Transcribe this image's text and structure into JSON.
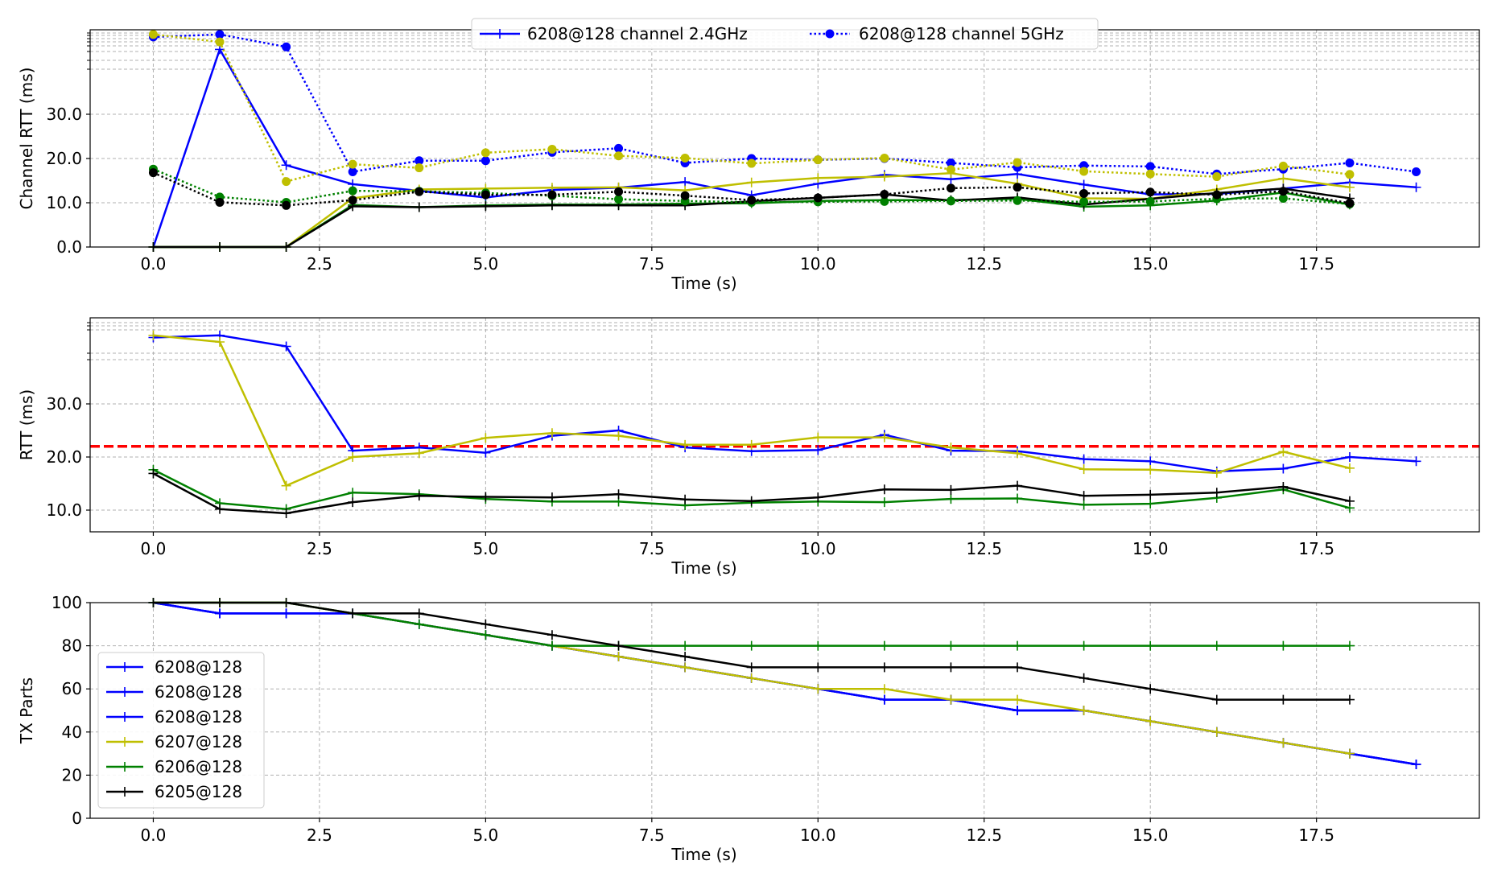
{
  "colors": {
    "blue": "#0000ff",
    "olive": "#bfbf00",
    "green": "#008000",
    "black": "#000000",
    "threshold": "#ff0000",
    "grid": "#b0b0b0"
  },
  "chart_data": [
    {
      "type": "line",
      "xlabel": "Time (s)",
      "ylabel": "Channel RTT (ms)",
      "xlim": [
        -0.95,
        19.95
      ],
      "xticks": [
        "0.0",
        "2.5",
        "5.0",
        "7.5",
        "10.0",
        "12.5",
        "15.0",
        "17.5"
      ],
      "yticks": [
        "0.0",
        "10.0",
        "20.0",
        "30.0"
      ],
      "grid": true,
      "legend_position": "top-center",
      "legend": [
        {
          "label": "6208@128 channel 2.4GHz",
          "style": "solid",
          "marker": "plus",
          "color": "blue"
        },
        {
          "label": "6208@128 channel 5GHz",
          "style": "dotted",
          "marker": "circle",
          "color": "blue"
        }
      ],
      "series": [
        {
          "color": "blue",
          "style": "solid",
          "marker": "plus",
          "x": [
            0,
            1,
            2,
            3,
            4,
            5,
            6,
            7,
            8,
            9,
            10,
            11,
            12,
            13,
            14,
            15,
            16,
            17,
            18,
            19
          ],
          "y": [
            0,
            43,
            18.5,
            14.2,
            12.7,
            11.2,
            12.9,
            13.4,
            14.7,
            11.7,
            14.3,
            16.3,
            15.3,
            16.5,
            14.1,
            11.9,
            12,
            13.2,
            14.6,
            13.5
          ]
        },
        {
          "color": "olive",
          "style": "solid",
          "marker": "plus",
          "x": [
            0,
            1,
            2,
            3,
            4,
            5,
            6,
            7,
            8,
            9,
            10,
            11,
            12,
            13,
            14,
            15,
            16,
            17,
            18
          ],
          "y": [
            0,
            0,
            0,
            11,
            13,
            13.2,
            13.4,
            13.5,
            12.8,
            14.6,
            15.6,
            15.9,
            16.7,
            14.3,
            11,
            10.9,
            13,
            15.5,
            13.5
          ]
        },
        {
          "color": "green",
          "style": "solid",
          "marker": "plus",
          "x": [
            0,
            1,
            2,
            3,
            4,
            5,
            6,
            7,
            8,
            9,
            10,
            11,
            12,
            13,
            14,
            15,
            16,
            17,
            18
          ],
          "y": [
            0,
            0,
            0,
            9.5,
            9,
            9.4,
            9.6,
            9.6,
            9.8,
            9.9,
            10.4,
            10.6,
            10.6,
            10.9,
            9.1,
            9.4,
            10.5,
            12.3,
            9.6
          ]
        },
        {
          "color": "black",
          "style": "solid",
          "marker": "plus",
          "x": [
            0,
            1,
            2,
            3,
            4,
            5,
            6,
            7,
            8,
            9,
            10,
            11,
            12,
            13,
            14,
            15,
            16,
            17,
            18
          ],
          "y": [
            0,
            0,
            0,
            9.2,
            9,
            9.2,
            9.4,
            9.4,
            9.4,
            10.3,
            11.1,
            11.9,
            10.5,
            11.2,
            9.6,
            10.9,
            12.2,
            13.2,
            11
          ]
        },
        {
          "color": "blue",
          "style": "dotted",
          "marker": "circle",
          "x": [
            0,
            1,
            2,
            3,
            4,
            5,
            6,
            7,
            8,
            9,
            10,
            11,
            12,
            13,
            14,
            15,
            16,
            17,
            18,
            19
          ],
          "y": [
            45.5,
            46,
            43.5,
            17,
            19.5,
            19.5,
            21.4,
            22.3,
            19,
            20,
            19.7,
            20,
            19,
            18,
            18.4,
            18.2,
            16.5,
            17.6,
            19,
            17
          ]
        },
        {
          "color": "olive",
          "style": "dotted",
          "marker": "circle",
          "x": [
            0,
            1,
            2,
            3,
            4,
            5,
            6,
            7,
            8,
            9,
            10,
            11,
            12,
            13,
            14,
            15,
            16,
            17,
            18
          ],
          "y": [
            46,
            44.5,
            14.8,
            18.7,
            17.9,
            21.3,
            22.1,
            20.6,
            20.1,
            18.9,
            19.7,
            20.1,
            17.5,
            19.1,
            17.1,
            16.5,
            15.9,
            18.3,
            16.4
          ]
        },
        {
          "color": "green",
          "style": "dotted",
          "marker": "circle",
          "x": [
            0,
            1,
            2,
            3,
            4,
            5,
            6,
            7,
            8,
            9,
            10,
            11,
            12,
            13,
            14,
            15,
            16,
            17,
            18
          ],
          "y": [
            17.6,
            11.3,
            10.1,
            12.7,
            12.6,
            12.2,
            11.6,
            10.8,
            10.4,
            10.1,
            10.2,
            10.3,
            10.4,
            10.5,
            10.2,
            10.3,
            10.9,
            11,
            9.7
          ]
        },
        {
          "color": "black",
          "style": "dotted",
          "marker": "circle",
          "x": [
            0,
            1,
            2,
            3,
            4,
            5,
            6,
            7,
            8,
            9,
            10,
            11,
            12,
            13,
            14,
            15,
            16,
            17,
            18
          ],
          "y": [
            16.8,
            10.1,
            9.4,
            10.6,
            12.5,
            11.8,
            11.8,
            12.5,
            11.6,
            10.6,
            11.1,
            11.9,
            13.3,
            13.5,
            12.1,
            12.4,
            11.8,
            12.6,
            9.9
          ]
        }
      ]
    },
    {
      "type": "line",
      "xlabel": "Time (s)",
      "ylabel": "RTT (ms)",
      "xlim": [
        -0.95,
        19.95
      ],
      "xticks": [
        "0.0",
        "2.5",
        "5.0",
        "7.5",
        "10.0",
        "12.5",
        "15.0",
        "17.5"
      ],
      "yticks": [
        "10.0",
        "20.0",
        "30.0"
      ],
      "grid": true,
      "threshold": {
        "y": 22,
        "color": "threshold",
        "style": "dashed"
      },
      "series": [
        {
          "color": "blue",
          "x": [
            0,
            1,
            2,
            3,
            4,
            5,
            6,
            7,
            8,
            9,
            10,
            11,
            12,
            13,
            14,
            15,
            16,
            17,
            18,
            19
          ],
          "y": [
            45,
            45.5,
            43,
            21.2,
            21.8,
            20.8,
            24,
            25,
            21.8,
            21.1,
            21.3,
            24.2,
            21.2,
            21.1,
            19.6,
            19.2,
            17.3,
            17.8,
            20,
            19.2
          ]
        },
        {
          "color": "olive",
          "x": [
            0,
            1,
            2,
            3,
            4,
            5,
            6,
            7,
            8,
            9,
            10,
            11,
            12,
            13,
            14,
            15,
            16,
            17,
            18
          ],
          "y": [
            45.5,
            44,
            14.6,
            20,
            20.7,
            23.6,
            24.5,
            24,
            22.3,
            22.3,
            23.7,
            23.7,
            21.8,
            20.7,
            17.7,
            17.6,
            17,
            21,
            17.9
          ]
        },
        {
          "color": "green",
          "x": [
            0,
            1,
            2,
            3,
            4,
            5,
            6,
            7,
            8,
            9,
            10,
            11,
            12,
            13,
            14,
            15,
            16,
            17,
            18
          ],
          "y": [
            17.6,
            11.3,
            10.2,
            13.3,
            13,
            12.1,
            11.6,
            11.6,
            10.9,
            11.4,
            11.6,
            11.5,
            12.1,
            12.2,
            11,
            11.2,
            12.3,
            13.9,
            10.4
          ]
        },
        {
          "color": "black",
          "x": [
            0,
            1,
            2,
            3,
            4,
            5,
            6,
            7,
            8,
            9,
            10,
            11,
            12,
            13,
            14,
            15,
            16,
            17,
            18
          ],
          "y": [
            16.9,
            10.2,
            9.4,
            11.5,
            12.7,
            12.5,
            12.4,
            13,
            12,
            11.7,
            12.4,
            13.9,
            13.8,
            14.6,
            12.7,
            12.9,
            13.3,
            14.4,
            11.7
          ]
        }
      ]
    },
    {
      "type": "line",
      "xlabel": "Time (s)",
      "ylabel": "TX Parts",
      "xlim": [
        -0.95,
        19.95
      ],
      "ylim": [
        0,
        100
      ],
      "xticks": [
        "0.0",
        "2.5",
        "5.0",
        "7.5",
        "10.0",
        "12.5",
        "15.0",
        "17.5"
      ],
      "yticks": [
        "0",
        "20",
        "40",
        "60",
        "80",
        "100"
      ],
      "grid": true,
      "legend_position": "lower-left",
      "series": [
        {
          "name": "6208@128",
          "color": "blue",
          "x": [
            0,
            1,
            2,
            3,
            4,
            5,
            6,
            7,
            8,
            9,
            10,
            11,
            12,
            13,
            14,
            15,
            16,
            17,
            18,
            19
          ],
          "y": [
            100,
            95,
            95,
            95,
            90,
            85,
            80,
            75,
            70,
            65,
            60,
            55,
            55,
            50,
            50,
            45,
            40,
            35,
            30,
            25
          ]
        },
        {
          "name": "6208@128",
          "color": "blue",
          "x": [
            0,
            1,
            2,
            3,
            4,
            5,
            6,
            7,
            8,
            9,
            10,
            11,
            12,
            13,
            14,
            15,
            16,
            17,
            18,
            19
          ],
          "y": [
            100,
            95,
            95,
            95,
            90,
            85,
            80,
            75,
            70,
            65,
            60,
            55,
            55,
            50,
            50,
            45,
            40,
            35,
            30,
            25
          ]
        },
        {
          "name": "6208@128",
          "color": "blue",
          "x": [
            0,
            1,
            2,
            3,
            4,
            5,
            6,
            7,
            8,
            9,
            10,
            11,
            12,
            13,
            14,
            15,
            16,
            17,
            18,
            19
          ],
          "y": [
            100,
            95,
            95,
            95,
            90,
            85,
            80,
            75,
            70,
            65,
            60,
            55,
            55,
            50,
            50,
            45,
            40,
            35,
            30,
            25
          ]
        },
        {
          "name": "6207@128",
          "color": "olive",
          "x": [
            0,
            1,
            2,
            3,
            4,
            5,
            6,
            7,
            8,
            9,
            10,
            11,
            12,
            13,
            14,
            15,
            16,
            17,
            18
          ],
          "y": [
            100,
            100,
            100,
            95,
            90,
            85,
            80,
            75,
            70,
            65,
            60,
            60,
            55,
            55,
            50,
            45,
            40,
            35,
            30
          ]
        },
        {
          "name": "6206@128",
          "color": "green",
          "x": [
            0,
            1,
            2,
            3,
            4,
            5,
            6,
            7,
            8,
            9,
            10,
            11,
            12,
            13,
            14,
            15,
            16,
            17,
            18
          ],
          "y": [
            100,
            100,
            100,
            95,
            90,
            85,
            80,
            80,
            80,
            80,
            80,
            80,
            80,
            80,
            80,
            80,
            80,
            80,
            80
          ]
        },
        {
          "name": "6205@128",
          "color": "black",
          "x": [
            0,
            1,
            2,
            3,
            4,
            5,
            6,
            7,
            8,
            9,
            10,
            11,
            12,
            13,
            14,
            15,
            16,
            17,
            18
          ],
          "y": [
            100,
            100,
            100,
            95,
            95,
            90,
            85,
            80,
            75,
            70,
            70,
            70,
            70,
            70,
            65,
            60,
            55,
            55,
            55
          ]
        }
      ]
    }
  ]
}
